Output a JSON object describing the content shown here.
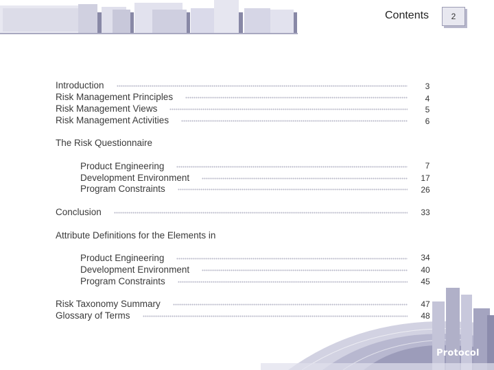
{
  "header": {
    "title": "Contents",
    "page_number": "2"
  },
  "toc": {
    "group1": [
      {
        "label": "Introduction",
        "page": "3"
      },
      {
        "label": "Risk Management Principles",
        "page": "4"
      },
      {
        "label": "Risk Management Views",
        "page": "5"
      },
      {
        "label": "Risk Management Activities",
        "page": "6"
      }
    ],
    "questionnaire": {
      "heading": "The Risk Questionnaire",
      "items": [
        {
          "label": "Product Engineering",
          "page": "7"
        },
        {
          "label": "Development Environment",
          "page": "17"
        },
        {
          "label": "Program Constraints",
          "page": "26"
        }
      ]
    },
    "conclusion": {
      "label": "Conclusion",
      "page": "33"
    },
    "attributes": {
      "heading": "Attribute Definitions for the Elements in",
      "items": [
        {
          "label": "Product Engineering",
          "page": "34"
        },
        {
          "label": "Development Environment",
          "page": "40"
        },
        {
          "label": "Program Constraints",
          "page": "45"
        }
      ]
    },
    "group_end": [
      {
        "label": "Risk Taxonomy Summary",
        "page": "47"
      },
      {
        "label": "Glossary of Terms",
        "page": "48"
      }
    ]
  },
  "footer": {
    "logo_text": "Protocol"
  },
  "colors": {
    "accent": "#b4b4d0",
    "deco_light": "#e4e4ef",
    "deco_dark": "#8a8aa8"
  }
}
